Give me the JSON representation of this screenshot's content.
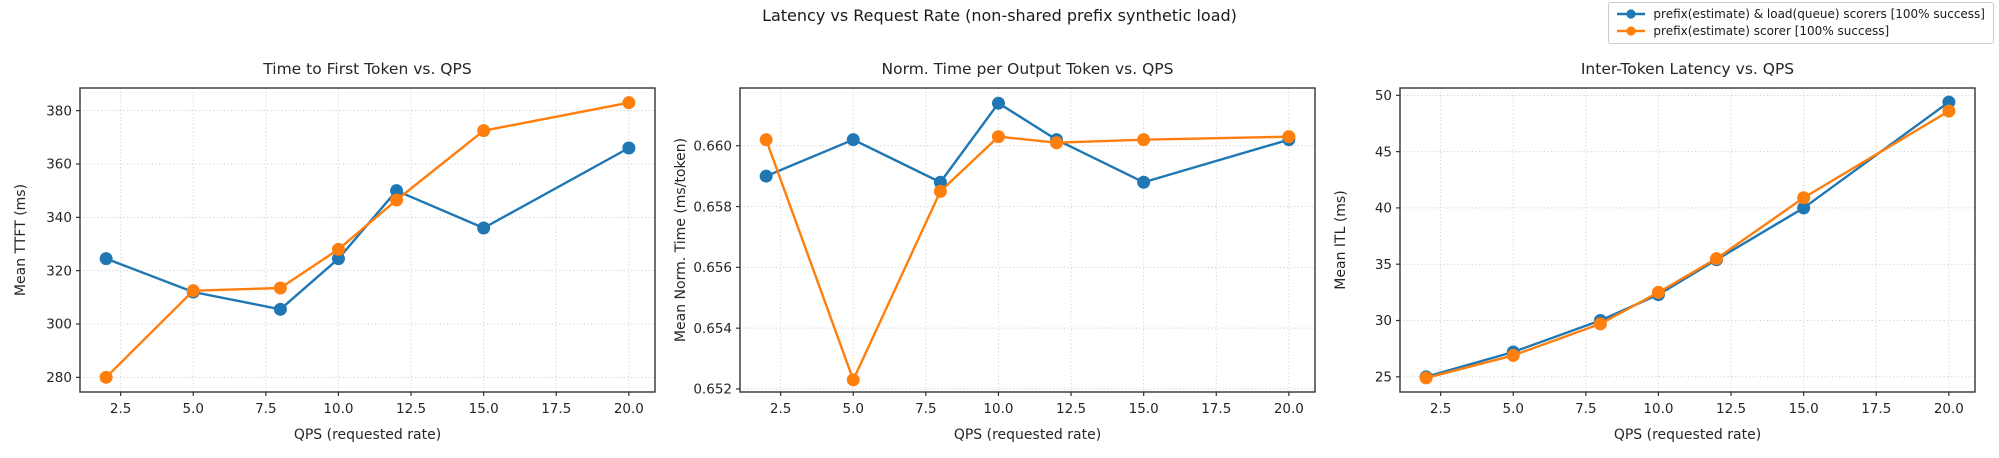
{
  "page_title": "Latency vs Request Rate (non-shared prefix synthetic load)",
  "colors": {
    "blue": "#1f77b4",
    "orange": "#ff7f0e",
    "grid": "#c9c9c9",
    "spine": "#333333",
    "text": "#262626"
  },
  "legend": {
    "items": [
      {
        "label": "prefix(estimate) & load(queue) scorers [100% success]",
        "color": "#1f77b4"
      },
      {
        "label": "prefix(estimate) scorer [100% success]",
        "color": "#ff7f0e"
      }
    ]
  },
  "chart_data": [
    {
      "type": "line",
      "title": "Time to First Token vs. QPS",
      "xlabel": "QPS (requested rate)",
      "ylabel": "Mean TTFT (ms)",
      "grid": true,
      "x": [
        2,
        5,
        8,
        10,
        12,
        15,
        20
      ],
      "xlim": [
        1.1,
        20.9
      ],
      "xticks": [
        2.5,
        5.0,
        7.5,
        10.0,
        12.5,
        15.0,
        17.5,
        20.0
      ],
      "xtick_labels": [
        "2.5",
        "5.0",
        "7.5",
        "10.0",
        "12.5",
        "15.0",
        "17.5",
        "20.0"
      ],
      "ylim": [
        274.5,
        388.5
      ],
      "yticks": [
        280,
        300,
        320,
        340,
        360,
        380
      ],
      "ytick_labels": [
        "280",
        "300",
        "320",
        "340",
        "360",
        "380"
      ],
      "series": [
        {
          "name": "prefix(estimate) & load(queue) scorers [100% success]",
          "color": "#1f77b4",
          "values": [
            324.5,
            312.0,
            305.5,
            324.5,
            350.0,
            336.0,
            366.0
          ]
        },
        {
          "name": "prefix(estimate) scorer [100% success]",
          "color": "#ff7f0e",
          "values": [
            280.0,
            312.5,
            313.5,
            328.0,
            346.5,
            372.5,
            383.0
          ]
        }
      ]
    },
    {
      "type": "line",
      "title": "Norm. Time per Output Token vs. QPS",
      "xlabel": "QPS (requested rate)",
      "ylabel": "Mean Norm. Time (ms/token)",
      "grid": true,
      "x": [
        2,
        5,
        8,
        10,
        12,
        15,
        20
      ],
      "xlim": [
        1.1,
        20.9
      ],
      "xticks": [
        2.5,
        5.0,
        7.5,
        10.0,
        12.5,
        15.0,
        17.5,
        20.0
      ],
      "xtick_labels": [
        "2.5",
        "5.0",
        "7.5",
        "10.0",
        "12.5",
        "15.0",
        "17.5",
        "20.0"
      ],
      "ylim": [
        0.6519,
        0.6619
      ],
      "yticks": [
        0.652,
        0.654,
        0.656,
        0.658,
        0.66
      ],
      "ytick_labels": [
        "0.652",
        "0.654",
        "0.656",
        "0.658",
        "0.660"
      ],
      "series": [
        {
          "name": "prefix(estimate) & load(queue) scorers [100% success]",
          "color": "#1f77b4",
          "values": [
            0.659,
            0.6602,
            0.6588,
            0.6614,
            0.6602,
            0.6588,
            0.6602
          ]
        },
        {
          "name": "prefix(estimate) scorer [100% success]",
          "color": "#ff7f0e",
          "values": [
            0.6602,
            0.6523,
            0.6585,
            0.6603,
            0.6601,
            0.6602,
            0.6603
          ]
        }
      ]
    },
    {
      "type": "line",
      "title": "Inter-Token Latency vs. QPS",
      "xlabel": "QPS (requested rate)",
      "ylabel": "Mean ITL (ms)",
      "grid": true,
      "x": [
        2,
        5,
        8,
        10,
        12,
        15,
        20
      ],
      "xlim": [
        1.1,
        20.9
      ],
      "xticks": [
        2.5,
        5.0,
        7.5,
        10.0,
        12.5,
        15.0,
        17.5,
        20.0
      ],
      "xtick_labels": [
        "2.5",
        "5.0",
        "7.5",
        "10.0",
        "12.5",
        "15.0",
        "17.5",
        "20.0"
      ],
      "ylim": [
        23.65,
        50.65
      ],
      "yticks": [
        25,
        30,
        35,
        40,
        45,
        50
      ],
      "ytick_labels": [
        "25",
        "30",
        "35",
        "40",
        "45",
        "50"
      ],
      "series": [
        {
          "name": "prefix(estimate) & load(queue) scorers [100% success]",
          "color": "#1f77b4",
          "values": [
            25.0,
            27.2,
            30.0,
            32.3,
            35.4,
            40.0,
            49.4
          ]
        },
        {
          "name": "prefix(estimate) scorer [100% success]",
          "color": "#ff7f0e",
          "values": [
            24.9,
            26.9,
            29.7,
            32.5,
            35.5,
            40.9,
            48.6
          ]
        }
      ]
    }
  ]
}
